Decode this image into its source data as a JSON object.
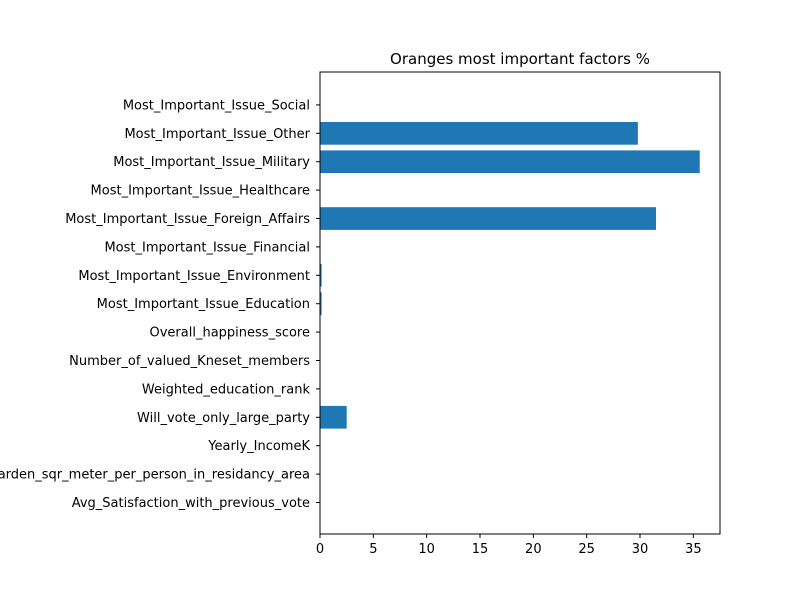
{
  "chart_data": {
    "type": "bar",
    "orientation": "horizontal",
    "title": "Oranges most important factors %",
    "xlabel": "",
    "ylabel": "",
    "xlim": [
      0,
      37.5
    ],
    "x_ticks": [
      0,
      5,
      10,
      15,
      20,
      25,
      30,
      35
    ],
    "grid": false,
    "bar_color": "#1f77b4",
    "categories": [
      "Avg_Satisfaction_with_previous_vote",
      "Garden_sqr_meter_per_person_in_residancy_area",
      "Yearly_IncomeK",
      "Will_vote_only_large_party",
      "Weighted_education_rank",
      "Number_of_valued_Kneset_members",
      "Overall_happiness_score",
      "Most_Important_Issue_Education",
      "Most_Important_Issue_Environment",
      "Most_Important_Issue_Financial",
      "Most_Important_Issue_Foreign_Affairs",
      "Most_Important_Issue_Healthcare",
      "Most_Important_Issue_Military",
      "Most_Important_Issue_Other",
      "Most_Important_Issue_Social"
    ],
    "values": [
      0,
      0,
      0,
      2.5,
      0,
      0,
      0,
      0.15,
      0.15,
      0,
      31.5,
      0,
      35.6,
      29.8,
      0
    ]
  }
}
